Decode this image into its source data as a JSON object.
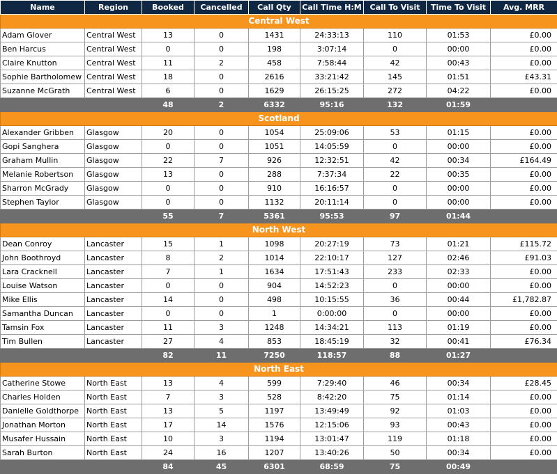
{
  "columns": [
    "Name",
    "Region",
    "Booked",
    "Cancelled",
    "Call Qty",
    "Call Time H:M",
    "Call To Visit",
    "Time To Visit",
    "Avg. MRR"
  ],
  "groups": [
    {
      "title": "Central West",
      "rows": [
        [
          "Adam Glover",
          "Central West",
          "13",
          "0",
          "1431",
          "24:33:13",
          "110",
          "01:53",
          "£0.00"
        ],
        [
          "Ben Harcus",
          "Central West",
          "0",
          "0",
          "198",
          "3:07:14",
          "0",
          "00:00",
          "£0.00"
        ],
        [
          "Claire Knutton",
          "Central West",
          "11",
          "2",
          "458",
          "7:58:44",
          "42",
          "00:43",
          "£0.00"
        ],
        [
          "Sophie Bartholomew",
          "Central West",
          "18",
          "0",
          "2616",
          "33:21:42",
          "145",
          "01:51",
          "£43.31"
        ],
        [
          "Suzanne McGrath",
          "Central West",
          "6",
          "0",
          "1629",
          "26:15:25",
          "272",
          "04:22",
          "£0.00"
        ]
      ],
      "totals": [
        "",
        "",
        "48",
        "2",
        "6332",
        "95:16",
        "132",
        "01:59",
        ""
      ]
    },
    {
      "title": "Scotland",
      "rows": [
        [
          "Alexander Gribben",
          "Glasgow",
          "20",
          "0",
          "1054",
          "25:09:06",
          "53",
          "01:15",
          "£0.00"
        ],
        [
          "Gopi Sanghera",
          "Glasgow",
          "0",
          "0",
          "1051",
          "14:05:59",
          "0",
          "00:00",
          "£0.00"
        ],
        [
          "Graham Mullin",
          "Glasgow",
          "22",
          "7",
          "926",
          "12:32:51",
          "42",
          "00:34",
          "£164.49"
        ],
        [
          "Melanie Robertson",
          "Glasgow",
          "13",
          "0",
          "288",
          "7:37:34",
          "22",
          "00:35",
          "£0.00"
        ],
        [
          "Sharron McGrady",
          "Glasgow",
          "0",
          "0",
          "910",
          "16:16:57",
          "0",
          "00:00",
          "£0.00"
        ],
        [
          "Stephen Taylor",
          "Glasgow",
          "0",
          "0",
          "1132",
          "20:11:14",
          "0",
          "00:00",
          "£0.00"
        ]
      ],
      "totals": [
        "",
        "",
        "55",
        "7",
        "5361",
        "95:53",
        "97",
        "01:44",
        ""
      ]
    },
    {
      "title": "North West",
      "rows": [
        [
          "Dean Conroy",
          "Lancaster",
          "15",
          "1",
          "1098",
          "20:27:19",
          "73",
          "01:21",
          "£115.72"
        ],
        [
          "John Boothroyd",
          "Lancaster",
          "8",
          "2",
          "1014",
          "22:10:17",
          "127",
          "02:46",
          "£91.03"
        ],
        [
          "Lara Cracknell",
          "Lancaster",
          "7",
          "1",
          "1634",
          "17:51:43",
          "233",
          "02:33",
          "£0.00"
        ],
        [
          "Louise Watson",
          "Lancaster",
          "0",
          "0",
          "904",
          "14:52:23",
          "0",
          "00:00",
          "£0.00"
        ],
        [
          "Mike Ellis",
          "Lancaster",
          "14",
          "0",
          "498",
          "10:15:55",
          "36",
          "00:44",
          "£1,782.87"
        ],
        [
          "Samantha Duncan",
          "Lancaster",
          "0",
          "0",
          "1",
          "0:00:00",
          "0",
          "00:00",
          "£0.00"
        ],
        [
          "Tamsin Fox",
          "Lancaster",
          "11",
          "3",
          "1248",
          "14:34:21",
          "113",
          "01:19",
          "£0.00"
        ],
        [
          "Tim Bullen",
          "Lancaster",
          "27",
          "4",
          "853",
          "18:45:19",
          "32",
          "00:41",
          "£76.34"
        ]
      ],
      "totals": [
        "",
        "",
        "82",
        "11",
        "7250",
        "118:57",
        "88",
        "01:27",
        ""
      ]
    },
    {
      "title": "North East",
      "rows": [
        [
          "Catherine Stowe",
          "North East",
          "13",
          "4",
          "599",
          "7:29:40",
          "46",
          "00:34",
          "£28.45"
        ],
        [
          "Charles Holden",
          "North East",
          "7",
          "3",
          "528",
          "8:42:20",
          "75",
          "01:14",
          "£0.00"
        ],
        [
          "Danielle Goldthorpe",
          "North East",
          "13",
          "5",
          "1197",
          "13:49:49",
          "92",
          "01:03",
          "£0.00"
        ],
        [
          "Jonathan Morton",
          "North East",
          "17",
          "14",
          "1576",
          "12:15:06",
          "93",
          "00:43",
          "£0.00"
        ],
        [
          "Musafer Hussain",
          "North East",
          "10",
          "3",
          "1194",
          "13:01:47",
          "119",
          "01:18",
          "£0.00"
        ],
        [
          "Sarah Burton",
          "North East",
          "24",
          "16",
          "1207",
          "13:40:26",
          "50",
          "00:34",
          "£0.00"
        ]
      ],
      "totals": [
        "",
        "",
        "84",
        "45",
        "6301",
        "68:59",
        "75",
        "00:49",
        ""
      ]
    }
  ]
}
